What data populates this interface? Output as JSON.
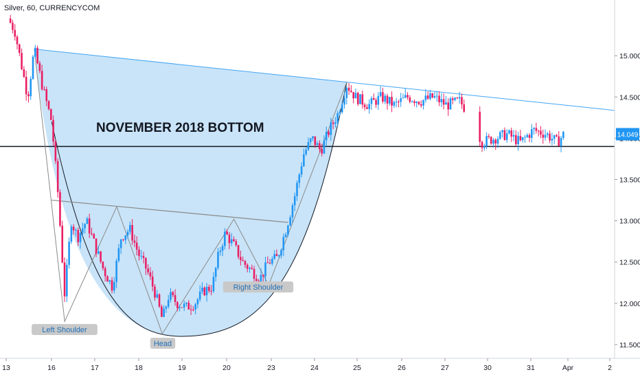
{
  "header": {
    "title": "Silver, 60, CURRENCYCOM"
  },
  "colors": {
    "up": "#2196f3",
    "down": "#e91e63",
    "fill": "#bfdff7",
    "trend": "#42a5f5",
    "grid_line": "#131722",
    "shoulder": "#8a8a8a",
    "price_badge": "#2196f3"
  },
  "annotations": {
    "banner": "NOVEMBER 2018 BOTTOM",
    "left_shoulder": "Left Shoulder",
    "head": "Head",
    "right_shoulder": "Right Shoulder"
  },
  "price_label": "14.049",
  "chart_data": {
    "type": "candlestick",
    "title": "Silver, 60, CURRENCYCOM",
    "x_ticks": [
      "13",
      "16",
      "17",
      "18",
      "19",
      "20",
      "23",
      "24",
      "25",
      "26",
      "27",
      "30",
      "31",
      "Apr",
      "2"
    ],
    "y_ticks": [
      "11.500",
      "12.000",
      "12.500",
      "13.000",
      "13.500",
      "14.000",
      "14.500",
      "15.000"
    ],
    "ylim": [
      11.4,
      15.55
    ],
    "support_level": 13.9,
    "last_price": 14.049,
    "pattern_points": [
      {
        "label": "start",
        "x": 0.6,
        "y": 15.08
      },
      {
        "label": "Left Shoulder",
        "x": 1.3,
        "y": 11.78
      },
      {
        "label": "Head",
        "x": 3.55,
        "y": 11.63
      },
      {
        "label": "Right Shoulder",
        "x": 6.0,
        "y": 12.22
      }
    ],
    "series_close_path": [
      [
        0.0,
        15.45
      ],
      [
        0.15,
        15.3
      ],
      [
        0.3,
        14.9
      ],
      [
        0.45,
        14.5
      ],
      [
        0.6,
        15.08
      ],
      [
        0.8,
        14.6
      ],
      [
        1.0,
        14.2
      ],
      [
        1.15,
        13.3
      ],
      [
        1.3,
        12.1
      ],
      [
        1.45,
        13.0
      ],
      [
        1.6,
        12.8
      ],
      [
        1.8,
        13.0
      ],
      [
        2.0,
        12.7
      ],
      [
        2.2,
        12.4
      ],
      [
        2.4,
        12.2
      ],
      [
        2.6,
        12.8
      ],
      [
        2.8,
        12.9
      ],
      [
        3.0,
        12.6
      ],
      [
        3.2,
        12.4
      ],
      [
        3.4,
        12.1
      ],
      [
        3.55,
        11.8
      ],
      [
        3.7,
        12.1
      ],
      [
        3.9,
        12.0
      ],
      [
        4.1,
        11.95
      ],
      [
        4.3,
        12.0
      ],
      [
        4.5,
        12.15
      ],
      [
        4.7,
        12.2
      ],
      [
        4.85,
        12.6
      ],
      [
        5.0,
        12.85
      ],
      [
        5.2,
        12.7
      ],
      [
        5.4,
        12.5
      ],
      [
        5.6,
        12.4
      ],
      [
        5.8,
        12.3
      ],
      [
        6.0,
        12.5
      ],
      [
        6.2,
        12.55
      ],
      [
        6.4,
        12.9
      ],
      [
        6.6,
        13.3
      ],
      [
        6.8,
        13.8
      ],
      [
        7.0,
        14.0
      ],
      [
        7.2,
        13.85
      ],
      [
        7.4,
        14.1
      ],
      [
        7.6,
        14.3
      ],
      [
        7.8,
        14.65
      ],
      [
        8.0,
        14.5
      ],
      [
        8.3,
        14.4
      ],
      [
        8.6,
        14.5
      ],
      [
        8.9,
        14.4
      ],
      [
        9.2,
        14.5
      ],
      [
        9.5,
        14.45
      ],
      [
        9.8,
        14.5
      ],
      [
        10.1,
        14.4
      ],
      [
        10.4,
        14.45
      ],
      [
        10.75,
        14.2
      ],
      [
        10.9,
        13.95
      ],
      [
        11.2,
        14.0
      ],
      [
        11.5,
        14.05
      ],
      [
        11.8,
        13.95
      ],
      [
        12.1,
        14.1
      ],
      [
        12.4,
        14.05
      ],
      [
        12.65,
        13.95
      ],
      [
        12.8,
        14.05
      ]
    ]
  }
}
